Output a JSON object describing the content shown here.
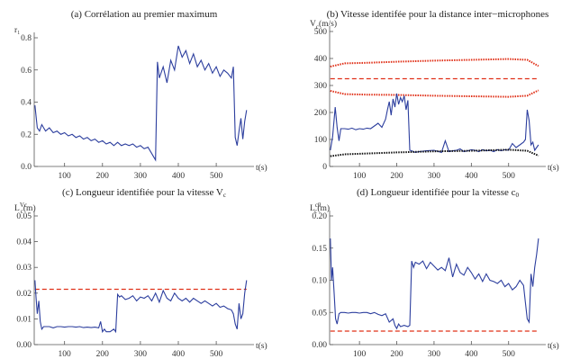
{
  "chart_data": [
    {
      "type": "line",
      "title": "(a) Corrélation au premier maximum",
      "ylabel": "r₁",
      "xlabel": "t(s)",
      "xlim": [
        20,
        590
      ],
      "ylim": [
        0,
        0.8
      ],
      "xticks": [
        100,
        200,
        300,
        400,
        500
      ],
      "yticks": [
        0,
        0.2,
        0.4,
        0.6,
        0.8
      ],
      "ytick_labels": [
        "0.0",
        "0.2",
        "0.4",
        "0.6",
        "0.8"
      ],
      "series": [
        {
          "color": "#2c3e9e",
          "style": "solid",
          "x": [
            22,
            28,
            34,
            40,
            50,
            60,
            70,
            80,
            90,
            100,
            110,
            120,
            130,
            140,
            150,
            160,
            170,
            180,
            190,
            200,
            210,
            220,
            230,
            240,
            250,
            260,
            270,
            280,
            290,
            300,
            310,
            320,
            330,
            335,
            340,
            345,
            350,
            360,
            370,
            380,
            390,
            400,
            410,
            420,
            430,
            440,
            450,
            460,
            470,
            480,
            490,
            500,
            510,
            520,
            530,
            540,
            545,
            550,
            555,
            560,
            565,
            570,
            575,
            580
          ],
          "y": [
            0.38,
            0.24,
            0.22,
            0.26,
            0.22,
            0.24,
            0.21,
            0.22,
            0.2,
            0.21,
            0.19,
            0.2,
            0.18,
            0.19,
            0.17,
            0.18,
            0.16,
            0.17,
            0.15,
            0.16,
            0.14,
            0.15,
            0.13,
            0.15,
            0.13,
            0.14,
            0.13,
            0.14,
            0.12,
            0.13,
            0.11,
            0.12,
            0.08,
            0.06,
            0.04,
            0.65,
            0.55,
            0.62,
            0.52,
            0.66,
            0.6,
            0.75,
            0.68,
            0.72,
            0.64,
            0.7,
            0.62,
            0.66,
            0.6,
            0.64,
            0.58,
            0.62,
            0.56,
            0.6,
            0.58,
            0.55,
            0.62,
            0.18,
            0.13,
            0.22,
            0.3,
            0.17,
            0.28,
            0.35
          ]
        }
      ]
    },
    {
      "type": "line",
      "title": "(b) Vitesse identifée pour la distance inter−microphones",
      "ylabel": "V",
      "ylabel_sub": "c",
      "ylabel_unit": "(m/s)",
      "xlabel": "t(s)",
      "xlim": [
        20,
        590
      ],
      "ylim": [
        0,
        500
      ],
      "xticks": [
        100,
        200,
        300,
        400,
        500
      ],
      "yticks": [
        0,
        100,
        200,
        300,
        400,
        500
      ],
      "ytick_labels": [
        "0",
        "100",
        "200",
        "300",
        "400",
        "500"
      ],
      "series": [
        {
          "color": "#e03018",
          "style": "dotted",
          "x": [
            22,
            60,
            120,
            200,
            300,
            400,
            500,
            550,
            580
          ],
          "y": [
            370,
            382,
            384,
            388,
            392,
            395,
            398,
            395,
            372
          ]
        },
        {
          "color": "#e03018",
          "style": "dashed",
          "x": [
            22,
            580
          ],
          "y": [
            325,
            325
          ]
        },
        {
          "color": "#e03018",
          "style": "dotted",
          "x": [
            22,
            60,
            120,
            200,
            300,
            400,
            500,
            550,
            580
          ],
          "y": [
            280,
            268,
            266,
            265,
            262,
            260,
            258,
            262,
            282
          ]
        },
        {
          "color": "#2c3e9e",
          "style": "solid",
          "x": [
            22,
            28,
            35,
            40,
            45,
            50,
            60,
            70,
            80,
            90,
            100,
            110,
            120,
            130,
            140,
            150,
            160,
            170,
            175,
            180,
            185,
            190,
            195,
            200,
            205,
            210,
            215,
            220,
            225,
            230,
            235,
            240,
            245,
            250,
            260,
            280,
            300,
            320,
            330,
            340,
            350,
            360,
            370,
            380,
            390,
            400,
            410,
            420,
            430,
            440,
            450,
            460,
            470,
            480,
            490,
            500,
            510,
            520,
            530,
            540,
            545,
            550,
            555,
            560,
            565,
            570,
            575,
            580
          ],
          "y": [
            60,
            110,
            220,
            145,
            95,
            140,
            140,
            138,
            142,
            136,
            140,
            138,
            142,
            140,
            150,
            160,
            145,
            175,
            210,
            240,
            190,
            250,
            220,
            270,
            230,
            255,
            240,
            262,
            210,
            245,
            60,
            58,
            55,
            52,
            55,
            58,
            60,
            52,
            95,
            55,
            58,
            60,
            65,
            55,
            58,
            62,
            60,
            55,
            62,
            58,
            60,
            55,
            62,
            58,
            62,
            60,
            85,
            70,
            80,
            90,
            100,
            210,
            170,
            80,
            90,
            60,
            70,
            80
          ]
        },
        {
          "color": "#111111",
          "style": "dotted",
          "x": [
            22,
            60,
            120,
            200,
            300,
            400,
            500,
            550,
            580
          ],
          "y": [
            38,
            45,
            48,
            52,
            56,
            58,
            62,
            58,
            40
          ]
        }
      ]
    },
    {
      "type": "line",
      "title": "(c) Longueur identifiée pour la vitesse V",
      "title_sub": "c",
      "ylabel": "L",
      "ylabel_sup": "Vc",
      "ylabel_sub": "c",
      "ylabel_unit": "(m)",
      "xlabel": "t(s)",
      "xlim": [
        20,
        590
      ],
      "ylim": [
        0,
        0.05
      ],
      "xticks": [
        100,
        200,
        300,
        400,
        500
      ],
      "yticks": [
        0,
        0.01,
        0.02,
        0.03,
        0.04,
        0.05
      ],
      "ytick_labels": [
        "0.00",
        "0.01",
        "0.02",
        "0.03",
        "0.04",
        "0.05"
      ],
      "series": [
        {
          "color": "#e03018",
          "style": "dashed",
          "x": [
            22,
            580
          ],
          "y": [
            0.0215,
            0.0215
          ]
        },
        {
          "color": "#2c3e9e",
          "style": "solid",
          "x": [
            22,
            25,
            28,
            32,
            36,
            40,
            45,
            50,
            60,
            70,
            80,
            90,
            100,
            110,
            120,
            130,
            140,
            150,
            160,
            170,
            180,
            190,
            195,
            200,
            205,
            210,
            220,
            230,
            235,
            240,
            245,
            250,
            260,
            270,
            280,
            290,
            300,
            310,
            320,
            330,
            340,
            350,
            360,
            370,
            380,
            390,
            400,
            410,
            420,
            430,
            440,
            450,
            460,
            470,
            480,
            490,
            500,
            510,
            520,
            530,
            540,
            545,
            550,
            555,
            560,
            565,
            570,
            575,
            580
          ],
          "y": [
            0.025,
            0.018,
            0.012,
            0.017,
            0.009,
            0.006,
            0.007,
            0.007,
            0.007,
            0.0065,
            0.007,
            0.007,
            0.0068,
            0.007,
            0.007,
            0.0068,
            0.007,
            0.0066,
            0.0068,
            0.0066,
            0.0068,
            0.0065,
            0.009,
            0.005,
            0.006,
            0.005,
            0.005,
            0.006,
            0.005,
            0.0195,
            0.0185,
            0.019,
            0.0175,
            0.018,
            0.019,
            0.017,
            0.0185,
            0.018,
            0.019,
            0.017,
            0.02,
            0.0165,
            0.021,
            0.018,
            0.017,
            0.02,
            0.018,
            0.017,
            0.018,
            0.0165,
            0.018,
            0.017,
            0.016,
            0.017,
            0.016,
            0.015,
            0.016,
            0.0145,
            0.015,
            0.014,
            0.0135,
            0.012,
            0.008,
            0.006,
            0.016,
            0.01,
            0.012,
            0.02,
            0.025
          ]
        }
      ]
    },
    {
      "type": "line",
      "title": "(d) Longueur identifiée pour la vitesse c",
      "title_sub": "0",
      "ylabel": "L",
      "ylabel_sup": "c0",
      "ylabel_sub": "c",
      "ylabel_unit": "(m)",
      "xlabel": "t(s)",
      "xlim": [
        20,
        590
      ],
      "ylim": [
        0,
        0.2
      ],
      "xticks": [
        100,
        200,
        300,
        400,
        500
      ],
      "yticks": [
        0,
        0.05,
        0.1,
        0.15,
        0.2
      ],
      "ytick_labels": [
        "0.00",
        "0.05",
        "0.10",
        "0.15",
        "0.20"
      ],
      "series": [
        {
          "color": "#e03018",
          "style": "dashed",
          "x": [
            22,
            580
          ],
          "y": [
            0.021,
            0.021
          ]
        },
        {
          "color": "#2c3e9e",
          "style": "solid",
          "x": [
            22,
            25,
            28,
            32,
            36,
            40,
            45,
            50,
            60,
            70,
            80,
            90,
            100,
            110,
            120,
            130,
            140,
            150,
            160,
            170,
            180,
            190,
            195,
            200,
            205,
            210,
            220,
            230,
            235,
            240,
            245,
            250,
            260,
            270,
            280,
            290,
            300,
            310,
            320,
            330,
            340,
            350,
            360,
            370,
            380,
            390,
            400,
            410,
            420,
            430,
            440,
            450,
            460,
            470,
            480,
            490,
            500,
            510,
            520,
            530,
            540,
            545,
            550,
            555,
            560,
            565,
            570,
            575,
            580
          ],
          "y": [
            0.165,
            0.1,
            0.12,
            0.08,
            0.04,
            0.032,
            0.048,
            0.05,
            0.05,
            0.049,
            0.05,
            0.05,
            0.049,
            0.05,
            0.05,
            0.048,
            0.05,
            0.047,
            0.045,
            0.048,
            0.035,
            0.04,
            0.03,
            0.025,
            0.032,
            0.028,
            0.03,
            0.028,
            0.03,
            0.13,
            0.12,
            0.128,
            0.125,
            0.13,
            0.118,
            0.128,
            0.122,
            0.116,
            0.12,
            0.115,
            0.135,
            0.105,
            0.125,
            0.112,
            0.108,
            0.12,
            0.112,
            0.102,
            0.11,
            0.098,
            0.11,
            0.1,
            0.098,
            0.095,
            0.1,
            0.09,
            0.095,
            0.085,
            0.09,
            0.1,
            0.092,
            0.065,
            0.04,
            0.035,
            0.11,
            0.09,
            0.12,
            0.14,
            0.165
          ]
        }
      ]
    }
  ]
}
